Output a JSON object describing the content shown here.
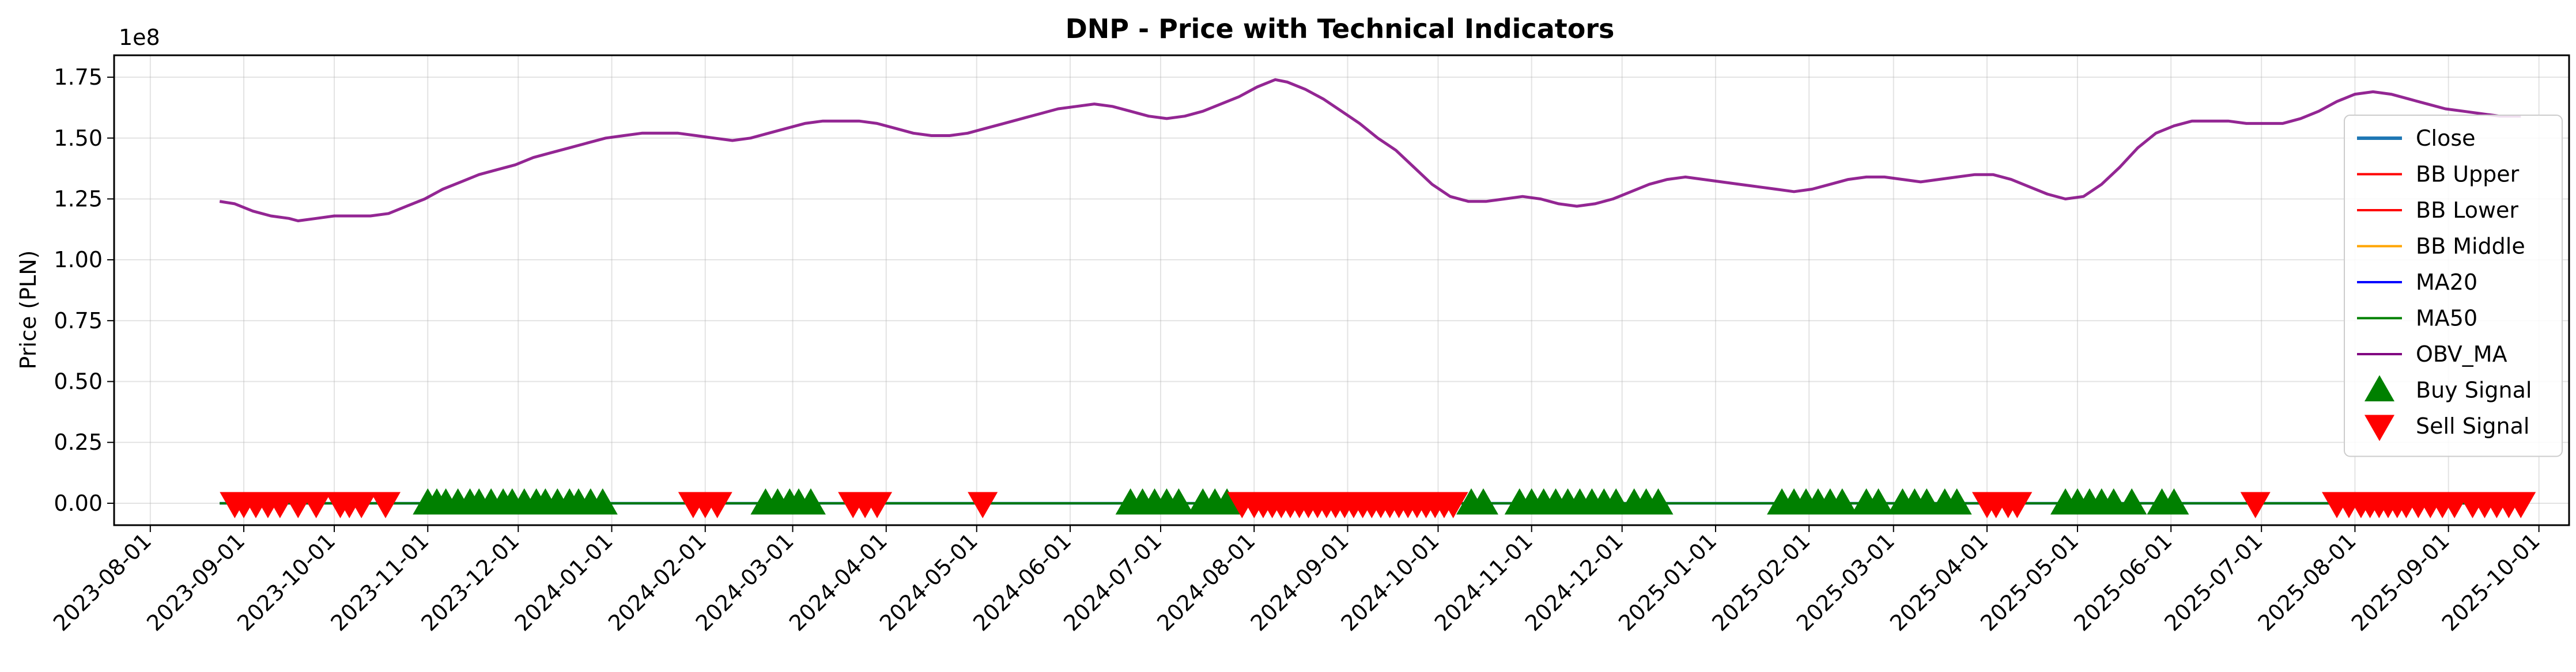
{
  "chart_data": {
    "type": "line",
    "title": "DNP - Price with Technical Indicators",
    "ylabel": "Price (PLN)",
    "xlabel": "",
    "y_offset_label": "1e8",
    "y_scale": 100000000,
    "ylim": [
      -0.09,
      1.84
    ],
    "xlim": [
      "2023-07-20",
      "2025-10-11"
    ],
    "grid": true,
    "legend_position": "right",
    "y_ticks": [
      0.0,
      0.25,
      0.5,
      0.75,
      1.0,
      1.25,
      1.5,
      1.75
    ],
    "y_tick_labels": [
      "0.00",
      "0.25",
      "0.50",
      "0.75",
      "1.00",
      "1.25",
      "1.50",
      "1.75"
    ],
    "x_ticks": [
      "2023-08-01",
      "2023-09-01",
      "2023-10-01",
      "2023-11-01",
      "2023-12-01",
      "2024-01-01",
      "2024-02-01",
      "2024-03-01",
      "2024-04-01",
      "2024-05-01",
      "2024-06-01",
      "2024-07-01",
      "2024-08-01",
      "2024-09-01",
      "2024-10-01",
      "2024-11-01",
      "2024-12-01",
      "2025-01-01",
      "2025-02-01",
      "2025-03-01",
      "2025-04-01",
      "2025-05-01",
      "2025-06-01",
      "2025-07-01",
      "2025-08-01",
      "2025-09-01",
      "2025-10-01"
    ],
    "colors": {
      "close": "#1f77b4",
      "bb_upper": "#ff0000",
      "bb_lower": "#ff0000",
      "bb_middle": "#ffa500",
      "ma20": "#0000ff",
      "ma50": "#008000",
      "obv_ma": "#800080",
      "buy": "#008000",
      "sell": "#ff0000"
    },
    "legend": [
      {
        "label": "Close",
        "key": "close",
        "kind": "line"
      },
      {
        "label": "BB Upper",
        "key": "bb_upper",
        "kind": "line"
      },
      {
        "label": "BB Lower",
        "key": "bb_lower",
        "kind": "line"
      },
      {
        "label": "BB Middle",
        "key": "bb_middle",
        "kind": "line"
      },
      {
        "label": "MA20",
        "key": "ma20",
        "kind": "line"
      },
      {
        "label": "MA50",
        "key": "ma50",
        "kind": "line"
      },
      {
        "label": "OBV_MA",
        "key": "obv_ma",
        "kind": "line"
      },
      {
        "label": "Buy Signal",
        "key": "buy",
        "kind": "up"
      },
      {
        "label": "Sell Signal",
        "key": "sell",
        "kind": "down"
      }
    ],
    "price_line": {
      "x_start": "2023-08-24",
      "x_end": "2025-09-25",
      "y": 0.0
    },
    "obv_ma": [
      [
        "2023-08-24",
        1.24
      ],
      [
        "2023-08-29",
        1.23
      ],
      [
        "2023-09-04",
        1.2
      ],
      [
        "2023-09-10",
        1.18
      ],
      [
        "2023-09-16",
        1.17
      ],
      [
        "2023-09-19",
        1.16
      ],
      [
        "2023-09-25",
        1.17
      ],
      [
        "2023-10-01",
        1.18
      ],
      [
        "2023-10-07",
        1.18
      ],
      [
        "2023-10-13",
        1.18
      ],
      [
        "2023-10-19",
        1.19
      ],
      [
        "2023-10-25",
        1.22
      ],
      [
        "2023-10-31",
        1.25
      ],
      [
        "2023-11-06",
        1.29
      ],
      [
        "2023-11-12",
        1.32
      ],
      [
        "2023-11-18",
        1.35
      ],
      [
        "2023-11-24",
        1.37
      ],
      [
        "2023-11-30",
        1.39
      ],
      [
        "2023-12-06",
        1.42
      ],
      [
        "2023-12-12",
        1.44
      ],
      [
        "2023-12-18",
        1.46
      ],
      [
        "2023-12-24",
        1.48
      ],
      [
        "2023-12-30",
        1.5
      ],
      [
        "2024-01-05",
        1.51
      ],
      [
        "2024-01-11",
        1.52
      ],
      [
        "2024-01-17",
        1.52
      ],
      [
        "2024-01-23",
        1.52
      ],
      [
        "2024-01-29",
        1.51
      ],
      [
        "2024-02-04",
        1.5
      ],
      [
        "2024-02-10",
        1.49
      ],
      [
        "2024-02-16",
        1.5
      ],
      [
        "2024-02-22",
        1.52
      ],
      [
        "2024-02-28",
        1.54
      ],
      [
        "2024-03-05",
        1.56
      ],
      [
        "2024-03-11",
        1.57
      ],
      [
        "2024-03-17",
        1.57
      ],
      [
        "2024-03-23",
        1.57
      ],
      [
        "2024-03-29",
        1.56
      ],
      [
        "2024-04-04",
        1.54
      ],
      [
        "2024-04-10",
        1.52
      ],
      [
        "2024-04-16",
        1.51
      ],
      [
        "2024-04-22",
        1.51
      ],
      [
        "2024-04-28",
        1.52
      ],
      [
        "2024-05-04",
        1.54
      ],
      [
        "2024-05-10",
        1.56
      ],
      [
        "2024-05-16",
        1.58
      ],
      [
        "2024-05-22",
        1.6
      ],
      [
        "2024-05-28",
        1.62
      ],
      [
        "2024-06-03",
        1.63
      ],
      [
        "2024-06-09",
        1.64
      ],
      [
        "2024-06-15",
        1.63
      ],
      [
        "2024-06-21",
        1.61
      ],
      [
        "2024-06-27",
        1.59
      ],
      [
        "2024-07-03",
        1.58
      ],
      [
        "2024-07-09",
        1.59
      ],
      [
        "2024-07-15",
        1.61
      ],
      [
        "2024-07-21",
        1.64
      ],
      [
        "2024-07-27",
        1.67
      ],
      [
        "2024-08-02",
        1.71
      ],
      [
        "2024-08-08",
        1.74
      ],
      [
        "2024-08-12",
        1.73
      ],
      [
        "2024-08-18",
        1.7
      ],
      [
        "2024-08-24",
        1.66
      ],
      [
        "2024-08-30",
        1.61
      ],
      [
        "2024-09-05",
        1.56
      ],
      [
        "2024-09-11",
        1.5
      ],
      [
        "2024-09-17",
        1.45
      ],
      [
        "2024-09-23",
        1.38
      ],
      [
        "2024-09-29",
        1.31
      ],
      [
        "2024-10-05",
        1.26
      ],
      [
        "2024-10-11",
        1.24
      ],
      [
        "2024-10-17",
        1.24
      ],
      [
        "2024-10-23",
        1.25
      ],
      [
        "2024-10-29",
        1.26
      ],
      [
        "2024-11-04",
        1.25
      ],
      [
        "2024-11-10",
        1.23
      ],
      [
        "2024-11-16",
        1.22
      ],
      [
        "2024-11-22",
        1.23
      ],
      [
        "2024-11-28",
        1.25
      ],
      [
        "2024-12-04",
        1.28
      ],
      [
        "2024-12-10",
        1.31
      ],
      [
        "2024-12-16",
        1.33
      ],
      [
        "2024-12-22",
        1.34
      ],
      [
        "2024-12-28",
        1.33
      ],
      [
        "2025-01-03",
        1.32
      ],
      [
        "2025-01-09",
        1.31
      ],
      [
        "2025-01-15",
        1.3
      ],
      [
        "2025-01-21",
        1.29
      ],
      [
        "2025-01-27",
        1.28
      ],
      [
        "2025-02-02",
        1.29
      ],
      [
        "2025-02-08",
        1.31
      ],
      [
        "2025-02-14",
        1.33
      ],
      [
        "2025-02-20",
        1.34
      ],
      [
        "2025-02-26",
        1.34
      ],
      [
        "2025-03-04",
        1.33
      ],
      [
        "2025-03-10",
        1.32
      ],
      [
        "2025-03-16",
        1.33
      ],
      [
        "2025-03-22",
        1.34
      ],
      [
        "2025-03-28",
        1.35
      ],
      [
        "2025-04-03",
        1.35
      ],
      [
        "2025-04-09",
        1.33
      ],
      [
        "2025-04-15",
        1.3
      ],
      [
        "2025-04-21",
        1.27
      ],
      [
        "2025-04-27",
        1.25
      ],
      [
        "2025-05-03",
        1.26
      ],
      [
        "2025-05-09",
        1.31
      ],
      [
        "2025-05-15",
        1.38
      ],
      [
        "2025-05-21",
        1.46
      ],
      [
        "2025-05-27",
        1.52
      ],
      [
        "2025-06-02",
        1.55
      ],
      [
        "2025-06-08",
        1.57
      ],
      [
        "2025-06-14",
        1.57
      ],
      [
        "2025-06-20",
        1.57
      ],
      [
        "2025-06-26",
        1.56
      ],
      [
        "2025-07-02",
        1.56
      ],
      [
        "2025-07-08",
        1.56
      ],
      [
        "2025-07-14",
        1.58
      ],
      [
        "2025-07-20",
        1.61
      ],
      [
        "2025-07-26",
        1.65
      ],
      [
        "2025-08-01",
        1.68
      ],
      [
        "2025-08-07",
        1.69
      ],
      [
        "2025-08-13",
        1.68
      ],
      [
        "2025-08-19",
        1.66
      ],
      [
        "2025-08-25",
        1.64
      ],
      [
        "2025-08-31",
        1.62
      ],
      [
        "2025-09-06",
        1.61
      ],
      [
        "2025-09-12",
        1.6
      ],
      [
        "2025-09-18",
        1.59
      ],
      [
        "2025-09-25",
        1.59
      ]
    ],
    "buy_signals": [
      "2023-11-01",
      "2023-11-04",
      "2023-11-07",
      "2023-11-11",
      "2023-11-15",
      "2023-11-18",
      "2023-11-22",
      "2023-11-26",
      "2023-11-29",
      "2023-12-03",
      "2023-12-07",
      "2023-12-10",
      "2023-12-14",
      "2023-12-18",
      "2023-12-21",
      "2023-12-25",
      "2023-12-29",
      "2024-02-21",
      "2024-02-25",
      "2024-02-29",
      "2024-03-03",
      "2024-03-07",
      "2024-06-21",
      "2024-06-25",
      "2024-06-29",
      "2024-07-03",
      "2024-07-07",
      "2024-07-15",
      "2024-07-19",
      "2024-07-23",
      "2024-10-12",
      "2024-10-16",
      "2024-10-28",
      "2024-11-01",
      "2024-11-05",
      "2024-11-09",
      "2024-11-13",
      "2024-11-17",
      "2024-11-21",
      "2024-11-25",
      "2024-11-29",
      "2024-12-05",
      "2024-12-09",
      "2024-12-13",
      "2025-01-23",
      "2025-01-27",
      "2025-01-31",
      "2025-02-04",
      "2025-02-08",
      "2025-02-12",
      "2025-02-20",
      "2025-02-24",
      "2025-03-04",
      "2025-03-08",
      "2025-03-12",
      "2025-03-18",
      "2025-03-22",
      "2025-04-27",
      "2025-05-01",
      "2025-05-05",
      "2025-05-09",
      "2025-05-13",
      "2025-05-19",
      "2025-05-29",
      "2025-06-02"
    ],
    "sell_signals": [
      "2023-08-29",
      "2023-09-01",
      "2023-09-05",
      "2023-09-09",
      "2023-09-13",
      "2023-09-19",
      "2023-09-25",
      "2023-10-03",
      "2023-10-06",
      "2023-10-10",
      "2023-10-18",
      "2024-01-28",
      "2024-02-01",
      "2024-02-05",
      "2024-03-21",
      "2024-03-25",
      "2024-03-29",
      "2024-05-03",
      "2024-07-28",
      "2024-08-01",
      "2024-08-04",
      "2024-08-07",
      "2024-08-10",
      "2024-08-13",
      "2024-08-16",
      "2024-08-19",
      "2024-08-22",
      "2024-08-25",
      "2024-08-28",
      "2024-08-31",
      "2024-09-03",
      "2024-09-06",
      "2024-09-09",
      "2024-09-12",
      "2024-09-15",
      "2024-09-18",
      "2024-09-21",
      "2024-09-24",
      "2024-09-27",
      "2024-09-30",
      "2024-10-03",
      "2024-10-06",
      "2025-04-01",
      "2025-04-04",
      "2025-04-08",
      "2025-04-11",
      "2025-06-29",
      "2025-07-26",
      "2025-07-30",
      "2025-08-03",
      "2025-08-06",
      "2025-08-09",
      "2025-08-12",
      "2025-08-15",
      "2025-08-18",
      "2025-08-22",
      "2025-08-26",
      "2025-08-30",
      "2025-09-03",
      "2025-09-09",
      "2025-09-13",
      "2025-09-17",
      "2025-09-21",
      "2025-09-25"
    ]
  }
}
